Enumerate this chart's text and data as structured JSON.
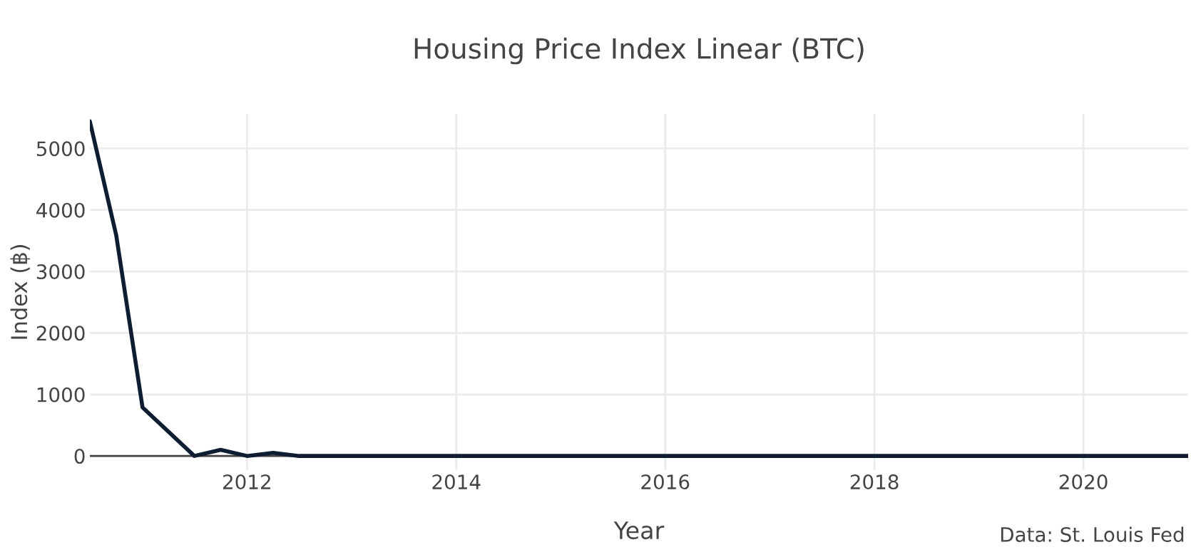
{
  "chart_data": {
    "type": "line",
    "title": "Housing Price Index Linear (BTC)",
    "xlabel": "Year",
    "ylabel": "Index (฿)",
    "annotations": [
      "Data: St. Louis Fed"
    ],
    "x": [
      "2010-07-01",
      "2010-10-01",
      "2011-01-01",
      "2011-07-01",
      "2011-10-01",
      "2012-01-01",
      "2012-04-01",
      "2012-07-01",
      "2013-01-01",
      "2013-07-01",
      "2014-01-01",
      "2015-01-01",
      "2016-01-01",
      "2017-01-01",
      "2018-01-01",
      "2019-01-01",
      "2020-01-01",
      "2021-01-01"
    ],
    "series": [
      {
        "color": "#0f1d33",
        "values": [
          5440,
          3590,
          790,
          0,
          100,
          0,
          50,
          0,
          0,
          0,
          0,
          0,
          0,
          0,
          0,
          0,
          0,
          0
        ]
      }
    ],
    "xlim": [
      "2010-07-01",
      "2021-01-01"
    ],
    "xticks": [
      {
        "value": "2012-01-01",
        "label": "2012"
      },
      {
        "value": "2014-01-01",
        "label": "2014"
      },
      {
        "value": "2016-01-01",
        "label": "2016"
      },
      {
        "value": "2018-01-01",
        "label": "2018"
      },
      {
        "value": "2020-01-01",
        "label": "2020"
      }
    ],
    "ylim": [
      -230,
      5560
    ],
    "yticks": [
      0,
      1000,
      2000,
      3000,
      4000,
      5000
    ],
    "grid": true,
    "marker": "none",
    "line_style": "solid",
    "legend": false
  }
}
